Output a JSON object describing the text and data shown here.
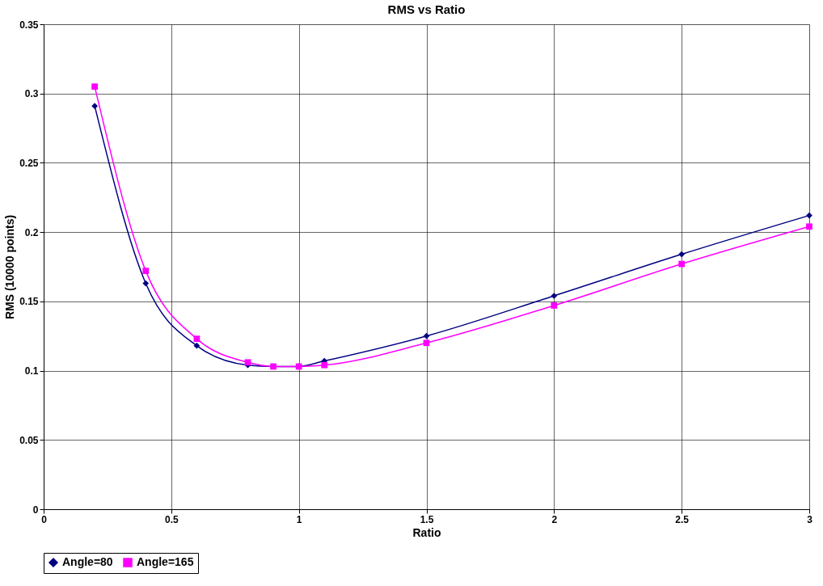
{
  "chart_data": {
    "type": "line",
    "title": "RMS vs Ratio",
    "xlabel": "Ratio",
    "ylabel": "RMS (10000 points)",
    "x": [
      0.2,
      0.4,
      0.6,
      0.8,
      0.9,
      1.0,
      1.1,
      1.5,
      2.0,
      2.5,
      3.0
    ],
    "series": [
      {
        "name": "Angle=80",
        "color": "#000080",
        "marker": "diamond",
        "values": [
          0.291,
          0.163,
          0.118,
          0.104,
          0.103,
          0.103,
          0.107,
          0.125,
          0.154,
          0.184,
          0.212
        ]
      },
      {
        "name": "Angle=165",
        "color": "#ff00ff",
        "marker": "square",
        "values": [
          0.305,
          0.172,
          0.123,
          0.106,
          0.103,
          0.103,
          0.104,
          0.12,
          0.147,
          0.177,
          0.204
        ]
      }
    ],
    "xlim": [
      0,
      3
    ],
    "xticks": [
      0,
      0.5,
      1,
      1.5,
      2,
      2.5,
      3
    ],
    "ylim": [
      0,
      0.35
    ],
    "yticks": [
      0,
      0.05,
      0.1,
      0.15,
      0.2,
      0.25,
      0.3,
      0.35
    ],
    "grid": true,
    "legend": "bottom",
    "line_style": "solid"
  }
}
